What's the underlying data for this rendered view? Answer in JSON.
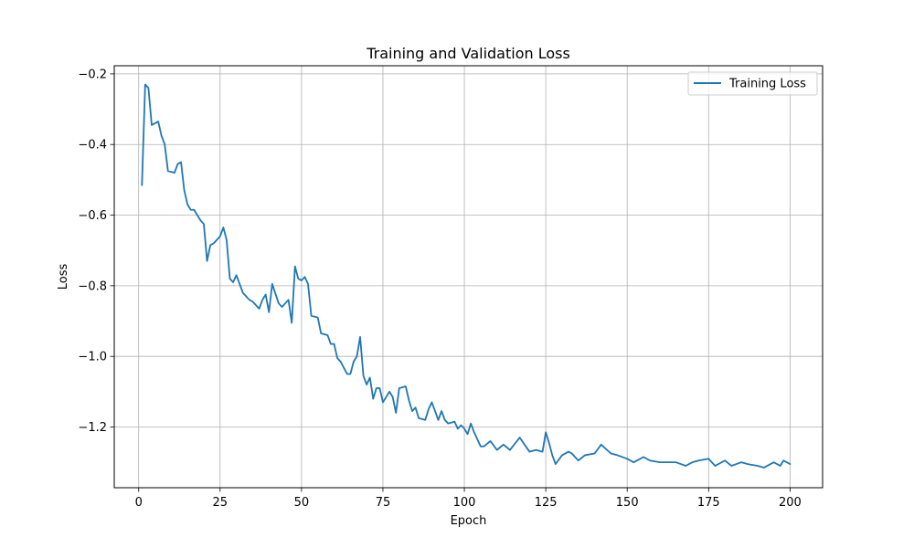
{
  "chart_data": {
    "type": "line",
    "title": "Training and Validation Loss",
    "xlabel": "Epoch",
    "ylabel": "Loss",
    "xlim": [
      -7.5,
      210
    ],
    "ylim": [
      -1.372,
      -0.177
    ],
    "xticks": [
      0,
      25,
      50,
      75,
      100,
      125,
      150,
      175,
      200
    ],
    "yticks": [
      -1.2,
      -1.0,
      -0.8,
      -0.6,
      -0.4,
      -0.2
    ],
    "xtick_labels": [
      "0",
      "25",
      "50",
      "75",
      "100",
      "125",
      "150",
      "175",
      "200"
    ],
    "ytick_labels": [
      "−1.2",
      "−1.0",
      "−0.8",
      "−0.6",
      "−0.4",
      "−0.2"
    ],
    "grid": true,
    "legend_position": "top-right",
    "series": [
      {
        "name": "Training Loss",
        "color": "#1f77b4",
        "x": [
          1,
          2,
          3,
          4,
          6,
          7,
          8,
          9,
          11,
          12,
          13,
          14,
          15,
          16,
          17,
          19,
          20,
          21,
          22,
          23,
          25,
          26,
          27,
          28,
          29,
          30,
          32,
          34,
          35,
          37,
          38,
          39,
          40,
          41,
          43,
          44,
          46,
          47,
          48,
          49,
          50,
          51,
          52,
          53,
          55,
          56,
          58,
          59,
          60,
          61,
          62,
          64,
          65,
          66,
          67,
          68,
          69,
          70,
          71,
          72,
          73,
          74,
          75,
          77,
          78,
          79,
          80,
          82,
          83,
          84,
          85,
          86,
          88,
          89,
          90,
          91,
          92,
          93,
          94,
          95,
          97,
          98,
          99,
          100,
          101,
          102,
          103,
          105,
          106,
          108,
          110,
          112,
          114,
          117,
          120,
          122,
          124,
          125,
          126,
          127,
          128,
          130,
          132,
          133,
          135,
          137,
          140,
          142,
          145,
          147,
          150,
          152,
          155,
          157,
          160,
          162,
          165,
          168,
          170,
          172,
          175,
          177,
          180,
          182,
          185,
          187,
          190,
          192,
          195,
          197,
          198,
          200
        ],
        "y": [
          -0.515,
          -0.23,
          -0.24,
          -0.345,
          -0.335,
          -0.375,
          -0.4,
          -0.475,
          -0.48,
          -0.455,
          -0.45,
          -0.53,
          -0.57,
          -0.585,
          -0.585,
          -0.615,
          -0.625,
          -0.73,
          -0.685,
          -0.68,
          -0.66,
          -0.635,
          -0.67,
          -0.78,
          -0.79,
          -0.77,
          -0.82,
          -0.84,
          -0.845,
          -0.865,
          -0.84,
          -0.825,
          -0.875,
          -0.795,
          -0.85,
          -0.86,
          -0.84,
          -0.905,
          -0.745,
          -0.78,
          -0.785,
          -0.775,
          -0.795,
          -0.885,
          -0.89,
          -0.935,
          -0.94,
          -0.965,
          -0.965,
          -1.005,
          -1.015,
          -1.05,
          -1.05,
          -1.015,
          -1.0,
          -0.945,
          -1.055,
          -1.08,
          -1.06,
          -1.12,
          -1.09,
          -1.09,
          -1.13,
          -1.1,
          -1.115,
          -1.16,
          -1.09,
          -1.085,
          -1.125,
          -1.155,
          -1.145,
          -1.175,
          -1.18,
          -1.15,
          -1.13,
          -1.155,
          -1.18,
          -1.155,
          -1.18,
          -1.19,
          -1.185,
          -1.205,
          -1.195,
          -1.205,
          -1.22,
          -1.19,
          -1.215,
          -1.255,
          -1.255,
          -1.24,
          -1.265,
          -1.25,
          -1.265,
          -1.23,
          -1.27,
          -1.265,
          -1.27,
          -1.215,
          -1.245,
          -1.28,
          -1.305,
          -1.28,
          -1.27,
          -1.275,
          -1.295,
          -1.28,
          -1.275,
          -1.25,
          -1.275,
          -1.28,
          -1.29,
          -1.3,
          -1.285,
          -1.295,
          -1.3,
          -1.3,
          -1.3,
          -1.31,
          -1.3,
          -1.295,
          -1.29,
          -1.31,
          -1.295,
          -1.31,
          -1.3,
          -1.305,
          -1.31,
          -1.315,
          -1.3,
          -1.31,
          -1.295,
          -1.305
        ]
      }
    ]
  }
}
